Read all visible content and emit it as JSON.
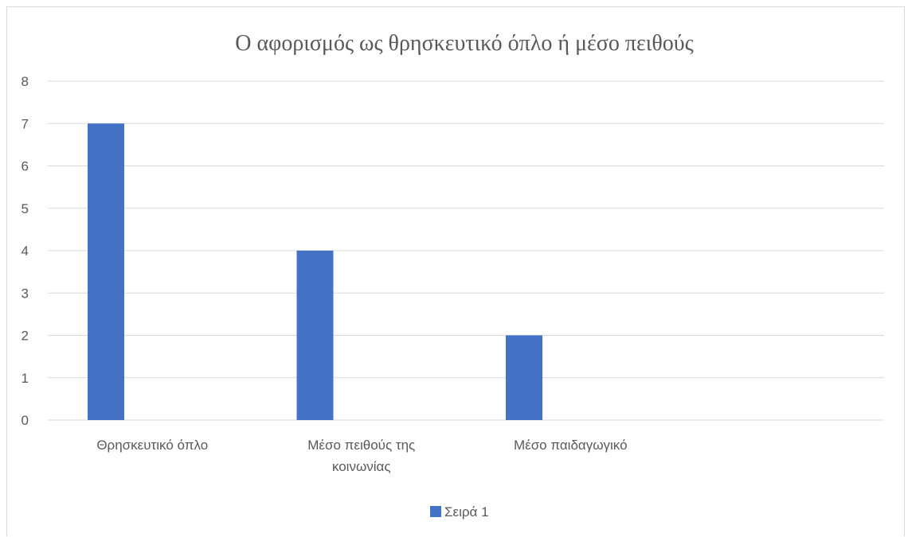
{
  "chart_data": {
    "type": "bar",
    "title": "Ο αφορισμός ως θρησκευτικό όπλο ή μέσο πειθούς",
    "categories": [
      [
        "Θρησκευτικό όπλο"
      ],
      [
        "Μέσο πειθούς της",
        "κοινωνίας"
      ],
      [
        "Μέσο παιδαγωγικό"
      ],
      [
        ""
      ]
    ],
    "series": [
      {
        "name": "Σειρά 1",
        "values": [
          7,
          4,
          2,
          null
        ],
        "color": "#4472c4"
      }
    ],
    "ylim": [
      0,
      8
    ],
    "yticks": [
      "0",
      "1",
      "2",
      "3",
      "4",
      "5",
      "6",
      "7",
      "8"
    ],
    "grid": true,
    "legend_position": "bottom",
    "gridline_color": "#d9d9d9"
  }
}
